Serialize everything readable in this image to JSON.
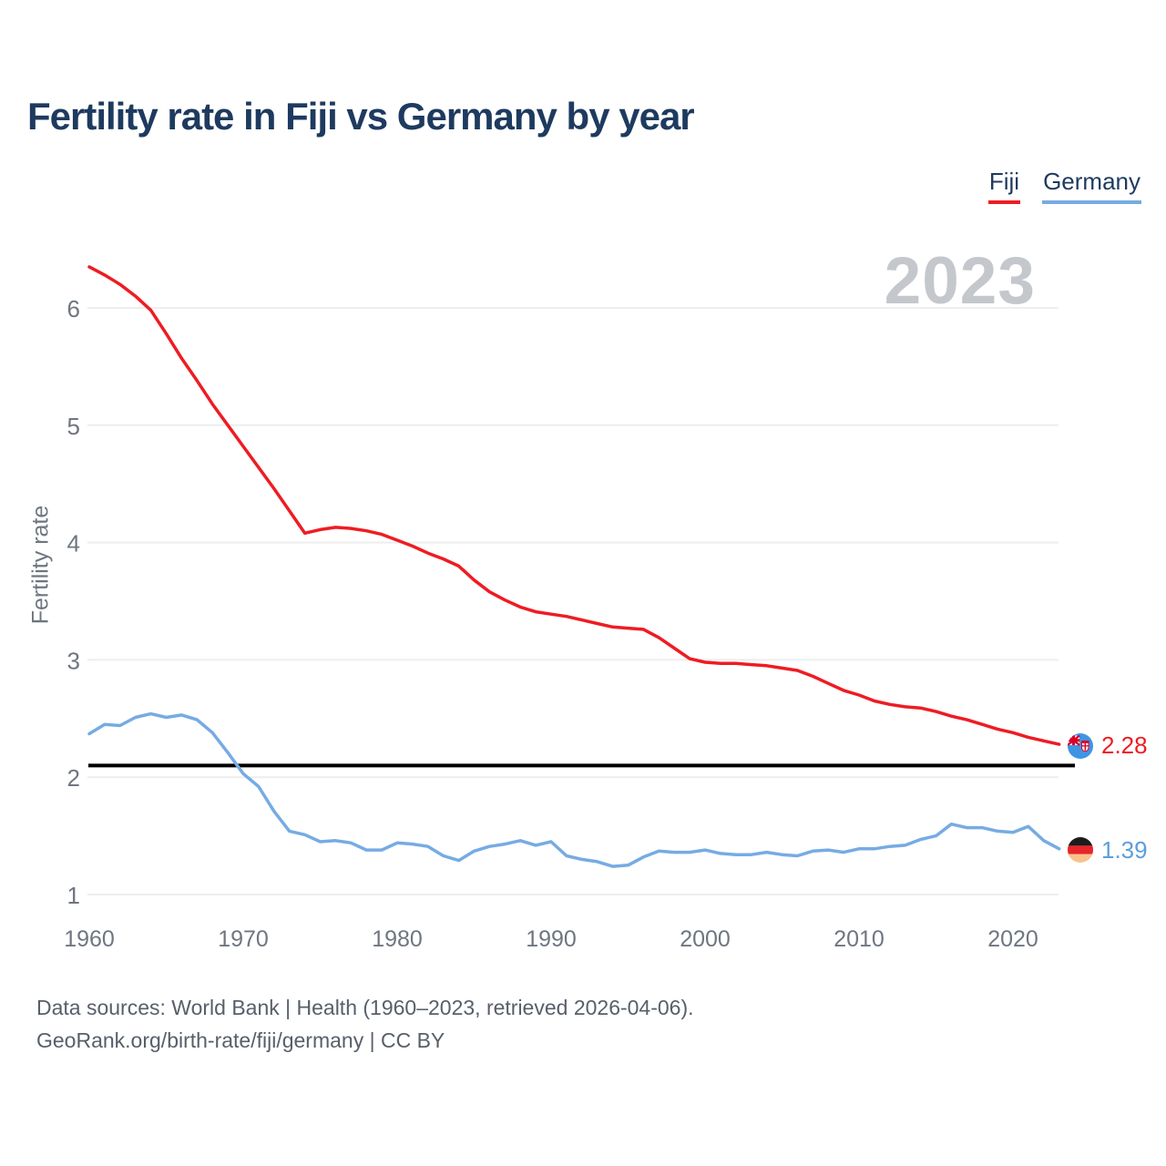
{
  "header": {
    "title": "Fertility rate in Fiji vs Germany by year"
  },
  "watermark": {
    "text": "2023"
  },
  "axes": {
    "y_title": "Fertility rate"
  },
  "footer": {
    "line1": "Data sources: World Bank | Health (1960–2023, retrieved 2026-04-06).",
    "line2": "GeoRank.org/birth-rate/fiji/germany | CC BY"
  },
  "icons": {
    "fiji": "fiji-flag-icon",
    "germany": "germany-flag-icon"
  },
  "colors": {
    "title_text": "#1e3a5f",
    "tick_text": "#6e7680",
    "footer_text": "#575f6a",
    "watermark_text": "#c4c7cb",
    "grid": "#eeeeee",
    "reference_line": "#000000",
    "fiji_line": "#ee1c23",
    "germany_line": "#76abe3",
    "fiji_label": "#ee1c23",
    "germany_label": "#5b9fd8"
  },
  "chart_data": {
    "type": "line",
    "title": "Fertility rate in Fiji vs Germany by year",
    "xlabel": "",
    "ylabel": "Fertility rate",
    "x_range": [
      1960,
      2023
    ],
    "ylim": [
      1,
      6.5
    ],
    "y_ticks": [
      1,
      2,
      3,
      4,
      5,
      6
    ],
    "x_ticks": [
      1960,
      1970,
      1980,
      1990,
      2000,
      2010,
      2020
    ],
    "grid": true,
    "legend_position": "top-right",
    "reference_line": 2.1,
    "current_year": "2023",
    "years": [
      1960,
      1961,
      1962,
      1963,
      1964,
      1965,
      1966,
      1967,
      1968,
      1969,
      1970,
      1971,
      1972,
      1973,
      1974,
      1975,
      1976,
      1977,
      1978,
      1979,
      1980,
      1981,
      1982,
      1983,
      1984,
      1985,
      1986,
      1987,
      1988,
      1989,
      1990,
      1991,
      1992,
      1993,
      1994,
      1995,
      1996,
      1997,
      1998,
      1999,
      2000,
      2001,
      2002,
      2003,
      2004,
      2005,
      2006,
      2007,
      2008,
      2009,
      2010,
      2011,
      2012,
      2013,
      2014,
      2015,
      2016,
      2017,
      2018,
      2019,
      2020,
      2021,
      2022,
      2023
    ],
    "series": [
      {
        "name": "Fiji",
        "color": "#ee1c23",
        "label_color": "#ee1c23",
        "end_label": "2.28",
        "values": [
          6.35,
          6.28,
          6.2,
          6.1,
          5.98,
          5.78,
          5.57,
          5.38,
          5.18,
          5.0,
          4.82,
          4.64,
          4.46,
          4.27,
          4.08,
          4.11,
          4.13,
          4.12,
          4.1,
          4.07,
          4.02,
          3.97,
          3.91,
          3.86,
          3.8,
          3.68,
          3.58,
          3.51,
          3.45,
          3.41,
          3.39,
          3.37,
          3.34,
          3.31,
          3.28,
          3.27,
          3.26,
          3.19,
          3.1,
          3.01,
          2.98,
          2.97,
          2.97,
          2.96,
          2.95,
          2.93,
          2.91,
          2.86,
          2.8,
          2.74,
          2.7,
          2.65,
          2.62,
          2.6,
          2.59,
          2.56,
          2.52,
          2.49,
          2.45,
          2.41,
          2.38,
          2.34,
          2.31,
          2.28
        ]
      },
      {
        "name": "Germany",
        "color": "#76abe3",
        "label_color": "#5b9fd8",
        "end_label": "1.39",
        "values": [
          2.37,
          2.45,
          2.44,
          2.51,
          2.54,
          2.51,
          2.53,
          2.49,
          2.38,
          2.21,
          2.03,
          1.92,
          1.71,
          1.54,
          1.51,
          1.45,
          1.46,
          1.44,
          1.38,
          1.38,
          1.44,
          1.43,
          1.41,
          1.33,
          1.29,
          1.37,
          1.41,
          1.43,
          1.46,
          1.42,
          1.45,
          1.33,
          1.3,
          1.28,
          1.24,
          1.25,
          1.32,
          1.37,
          1.36,
          1.36,
          1.38,
          1.35,
          1.34,
          1.34,
          1.36,
          1.34,
          1.33,
          1.37,
          1.38,
          1.36,
          1.39,
          1.39,
          1.41,
          1.42,
          1.47,
          1.5,
          1.6,
          1.57,
          1.57,
          1.54,
          1.53,
          1.58,
          1.46,
          1.39
        ]
      }
    ]
  }
}
